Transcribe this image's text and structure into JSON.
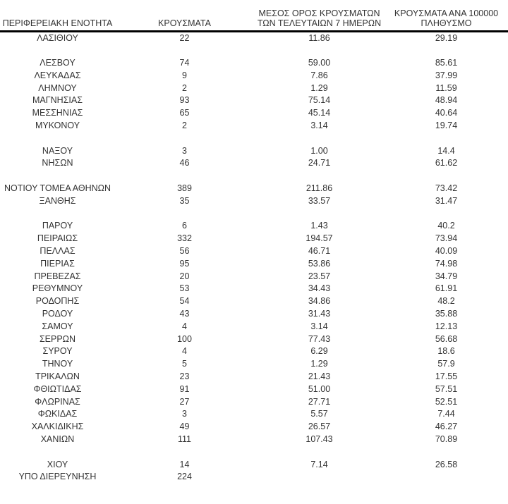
{
  "colors": {
    "bg": "#ffffff",
    "text": "#333333",
    "rule": "#000000"
  },
  "table": {
    "columns": [
      {
        "label": "ΠΕΡΙΦΕΡΕΙΑΚΗ ΕΝΟΤΗΤΑ"
      },
      {
        "label": "ΚΡΟΥΣΜΑΤΑ"
      },
      {
        "label_line1": "ΜΕΣΟΣ ΟΡΟΣ ΚΡΟΥΣΜΑΤΩΝ",
        "label_line2": "ΤΩΝ ΤΕΛΕΥΤΑΙΩΝ 7 ΗΜΕΡΩΝ"
      },
      {
        "label_line1": "ΚΡΟΥΣΜΑΤΑ ΑΝΑ 100000",
        "label_line2": "ΠΛΗΘΥΣΜΟ"
      }
    ],
    "rows": [
      {
        "region": "ΛΑΣΙΘΙΟΥ",
        "cases": "22",
        "avg7": "11.86",
        "per100k": "29.19"
      },
      {
        "spacer": true
      },
      {
        "region": "ΛΕΣΒΟΥ",
        "cases": "74",
        "avg7": "59.00",
        "per100k": "85.61"
      },
      {
        "region": "ΛΕΥΚΑΔΑΣ",
        "cases": "9",
        "avg7": "7.86",
        "per100k": "37.99"
      },
      {
        "region": "ΛΗΜΝΟΥ",
        "cases": "2",
        "avg7": "1.29",
        "per100k": "11.59"
      },
      {
        "region": "ΜΑΓΝΗΣΙΑΣ",
        "cases": "93",
        "avg7": "75.14",
        "per100k": "48.94"
      },
      {
        "region": "ΜΕΣΣΗΝΙΑΣ",
        "cases": "65",
        "avg7": "45.14",
        "per100k": "40.64"
      },
      {
        "region": "ΜΥΚΟΝΟΥ",
        "cases": "2",
        "avg7": "3.14",
        "per100k": "19.74"
      },
      {
        "spacer": true
      },
      {
        "region": "ΝΑΞΟΥ",
        "cases": "3",
        "avg7": "1.00",
        "per100k": "14.4"
      },
      {
        "region": "ΝΗΣΩΝ",
        "cases": "46",
        "avg7": "24.71",
        "per100k": "61.62"
      },
      {
        "spacer": true
      },
      {
        "region": "ΝΟΤΙΟΥ ΤΟΜΕΑ ΑΘΗΝΩΝ",
        "cases": "389",
        "avg7": "211.86",
        "per100k": "73.42"
      },
      {
        "region": "ΞΑΝΘΗΣ",
        "cases": "35",
        "avg7": "33.57",
        "per100k": "31.47"
      },
      {
        "spacer": true
      },
      {
        "region": "ΠΑΡΟΥ",
        "cases": "6",
        "avg7": "1.43",
        "per100k": "40.2"
      },
      {
        "region": "ΠΕΙΡΑΙΩΣ",
        "cases": "332",
        "avg7": "194.57",
        "per100k": "73.94"
      },
      {
        "region": "ΠΕΛΛΑΣ",
        "cases": "56",
        "avg7": "46.71",
        "per100k": "40.09"
      },
      {
        "region": "ΠΙΕΡΙΑΣ",
        "cases": "95",
        "avg7": "53.86",
        "per100k": "74.98"
      },
      {
        "region": "ΠΡΕΒΕΖΑΣ",
        "cases": "20",
        "avg7": "23.57",
        "per100k": "34.79"
      },
      {
        "region": "ΡΕΘΥΜΝΟΥ",
        "cases": "53",
        "avg7": "34.43",
        "per100k": "61.91"
      },
      {
        "region": "ΡΟΔΟΠΗΣ",
        "cases": "54",
        "avg7": "34.86",
        "per100k": "48.2"
      },
      {
        "region": "ΡΟΔΟΥ",
        "cases": "43",
        "avg7": "31.43",
        "per100k": "35.88"
      },
      {
        "region": "ΣΑΜΟΥ",
        "cases": "4",
        "avg7": "3.14",
        "per100k": "12.13"
      },
      {
        "region": "ΣΕΡΡΩΝ",
        "cases": "100",
        "avg7": "77.43",
        "per100k": "56.68"
      },
      {
        "region": "ΣΥΡΟΥ",
        "cases": "4",
        "avg7": "6.29",
        "per100k": "18.6"
      },
      {
        "region": "ΤΗΝΟΥ",
        "cases": "5",
        "avg7": "1.29",
        "per100k": "57.9"
      },
      {
        "region": "ΤΡΙΚΑΛΩΝ",
        "cases": "23",
        "avg7": "21.43",
        "per100k": "17.55"
      },
      {
        "region": "ΦΘΙΩΤΙΔΑΣ",
        "cases": "91",
        "avg7": "51.00",
        "per100k": "57.51"
      },
      {
        "region": "ΦΛΩΡΙΝΑΣ",
        "cases": "27",
        "avg7": "27.71",
        "per100k": "52.51"
      },
      {
        "region": "ΦΩΚΙΔΑΣ",
        "cases": "3",
        "avg7": "5.57",
        "per100k": "7.44"
      },
      {
        "region": "ΧΑΛΚΙΔΙΚΗΣ",
        "cases": "49",
        "avg7": "26.57",
        "per100k": "46.27"
      },
      {
        "region": "ΧΑΝΙΩΝ",
        "cases": "111",
        "avg7": "107.43",
        "per100k": "70.89"
      },
      {
        "spacer": true
      },
      {
        "region": "ΧΙΟΥ",
        "cases": "14",
        "avg7": "7.14",
        "per100k": "26.58"
      },
      {
        "region": "ΥΠΟ ΔΙΕΡΕΥΝΗΣΗ",
        "cases": "224",
        "avg7": "",
        "per100k": ""
      }
    ]
  }
}
